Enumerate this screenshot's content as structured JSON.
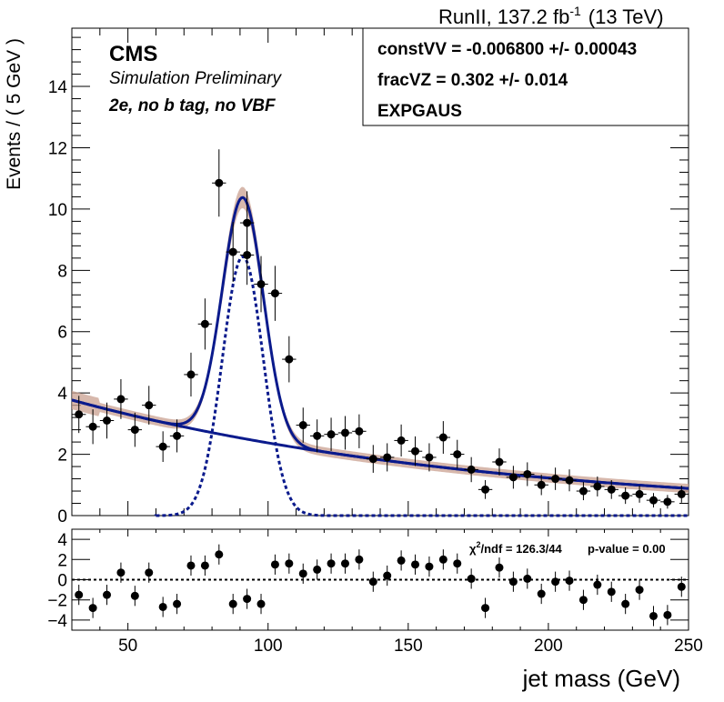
{
  "header": {
    "lumi_label": "RunII, 137.2 fb",
    "lumi_exp": "-1",
    "energy": "(13 TeV)"
  },
  "cms": {
    "title": "CMS",
    "subtitle": "Simulation Preliminary",
    "category": "2e, no b tag, no VBF"
  },
  "fitbox": {
    "line1": "constVV = -0.006800 +/- 0.00043",
    "line2": "fracVZ =  0.302 +/- 0.014",
    "line3": "EXPGAUS"
  },
  "pull_info": {
    "chi2_prefix": "χ",
    "chi2_exp": "2",
    "chi2_value": "/ndf = 126.3/44",
    "pvalue": "p-value = 0.00"
  },
  "colors": {
    "fit_line": "#0a1a8c",
    "band": "#c9a090",
    "points": "#000000"
  },
  "chart_data": [
    {
      "type": "scatter",
      "title": "",
      "xlabel": "jet mass (GeV)",
      "ylabel": "Events / ( 5 GeV )",
      "xlim": [
        30,
        250
      ],
      "ylim": [
        0,
        15.9
      ],
      "xticks": [
        50,
        100,
        150,
        200,
        250
      ],
      "yticks": [
        0,
        2,
        4,
        6,
        8,
        10,
        12,
        14
      ],
      "bin_width": 5,
      "x": [
        32.5,
        37.5,
        42.5,
        47.5,
        52.5,
        57.5,
        62.5,
        67.5,
        72.5,
        77.5,
        82.5,
        87.5,
        92.5,
        97.5,
        102.5,
        107.5,
        112.5,
        117.5,
        122.5,
        127.5,
        132.5,
        137.5,
        142.5,
        147.5,
        152.5,
        157.5,
        162.5,
        167.5,
        172.5,
        177.5,
        182.5,
        187.5,
        192.5,
        197.5,
        202.5,
        207.5,
        212.5,
        217.5,
        222.5,
        227.5,
        232.5,
        237.5,
        242.5,
        247.5
      ],
      "y": [
        3.3,
        2.9,
        3.1,
        3.8,
        2.8,
        3.6,
        2.25,
        2.6,
        4.6,
        6.25,
        10.85,
        8.6,
        9.55,
        7.55,
        7.25,
        5.1,
        2.95,
        2.6,
        2.65,
        2.7,
        2.75,
        1.85,
        1.9,
        2.45,
        2.1,
        1.9,
        2.55,
        2.0,
        1.5,
        0.85,
        1.75,
        1.25,
        1.35,
        1.0,
        1.2,
        1.15,
        0.8,
        0.95,
        0.85,
        0.65,
        0.7,
        0.5,
        0.45,
        0.7
      ],
      "extra_points": [
        {
          "x": 92.5,
          "y": 8.5
        }
      ],
      "series": [
        {
          "name": "",
          "style": "solid",
          "curve": "total fit"
        },
        {
          "name": "",
          "style": "solid",
          "curve": "background"
        },
        {
          "name": "",
          "style": "dashed",
          "curve": "signal"
        }
      ],
      "grid": false
    },
    {
      "type": "scatter",
      "title": "",
      "xlabel": "jet mass (GeV)",
      "ylabel": "",
      "xlim": [
        30,
        250
      ],
      "ylim": [
        -5,
        5
      ],
      "yticks": [
        -4,
        -2,
        0,
        2,
        4
      ],
      "x": [
        32.5,
        37.5,
        42.5,
        47.5,
        52.5,
        57.5,
        62.5,
        67.5,
        72.5,
        77.5,
        82.5,
        87.5,
        92.5,
        97.5,
        102.5,
        107.5,
        112.5,
        117.5,
        122.5,
        127.5,
        132.5,
        137.5,
        142.5,
        147.5,
        152.5,
        157.5,
        162.5,
        167.5,
        172.5,
        177.5,
        182.5,
        187.5,
        192.5,
        197.5,
        202.5,
        207.5,
        212.5,
        217.5,
        222.5,
        227.5,
        232.5,
        237.5,
        242.5,
        247.5
      ],
      "y": [
        -1.5,
        -2.8,
        -1.5,
        0.7,
        -1.6,
        0.7,
        -2.7,
        -2.4,
        1.4,
        1.4,
        2.5,
        -2.4,
        -1.9,
        -2.4,
        1.5,
        1.6,
        0.6,
        1.0,
        1.6,
        1.6,
        2.0,
        -0.2,
        0.4,
        1.9,
        1.5,
        1.3,
        2.0,
        1.6,
        0.1,
        -2.8,
        1.2,
        -0.2,
        0.1,
        -1.4,
        -0.2,
        -0.1,
        -2.0,
        -0.5,
        -1.2,
        -2.4,
        -1.0,
        -3.6,
        -3.5,
        -0.7
      ],
      "reference_line": 0,
      "grid": false
    }
  ]
}
